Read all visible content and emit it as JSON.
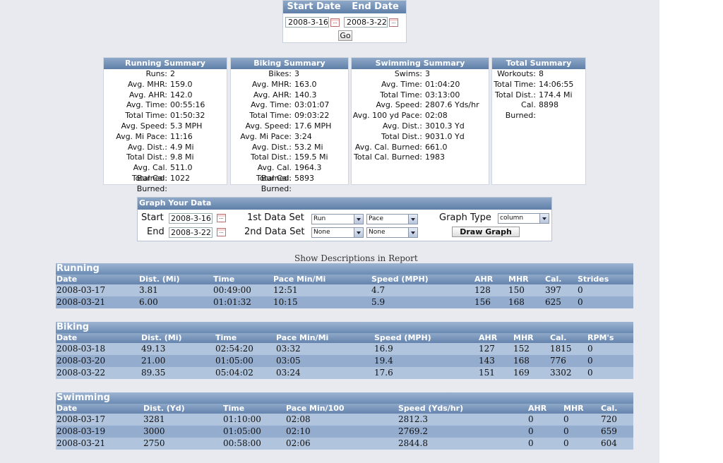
{
  "date_bar": {
    "start_label": "Start Date",
    "end_label": "End Date",
    "start_value": "2008-3-16",
    "end_value": "2008-3-22",
    "go_label": "Go"
  },
  "summaries": {
    "running": {
      "title": "Running Summary",
      "rows": [
        {
          "k": "Runs:",
          "v": "2"
        },
        {
          "k": "Avg. MHR:",
          "v": "159.0"
        },
        {
          "k": "Avg. AHR:",
          "v": "142.0"
        },
        {
          "k": "Avg. Time:",
          "v": "00:55:16"
        },
        {
          "k": "Total Time:",
          "v": "01:50:32"
        },
        {
          "k": "Avg. Speed:",
          "v": "5.3 MPH"
        },
        {
          "k": "Avg. Mi Pace:",
          "v": "11:16"
        },
        {
          "k": "Avg. Dist.:",
          "v": "4.9 Mi"
        },
        {
          "k": "Total Dist.:",
          "v": "9.8 Mi"
        },
        {
          "k": "Avg. Cal. Burned:",
          "v": "511.0"
        },
        {
          "k": "Total Cal. Burned:",
          "v": "1022"
        }
      ]
    },
    "biking": {
      "title": "Biking Summary",
      "rows": [
        {
          "k": "Bikes:",
          "v": "3"
        },
        {
          "k": "Avg. MHR:",
          "v": "163.0"
        },
        {
          "k": "Avg. AHR:",
          "v": "140.3"
        },
        {
          "k": "Avg. Time:",
          "v": "03:01:07"
        },
        {
          "k": "Total Time:",
          "v": "09:03:22"
        },
        {
          "k": "Avg. Speed:",
          "v": "17.6 MPH"
        },
        {
          "k": "Avg. Mi Pace:",
          "v": "3:24"
        },
        {
          "k": "Avg. Dist.:",
          "v": "53.2 Mi"
        },
        {
          "k": "Total Dist.:",
          "v": "159.5 Mi"
        },
        {
          "k": "Avg. Cal. Burned:",
          "v": "1964.3"
        },
        {
          "k": "Total Cal. Burned:",
          "v": "5893"
        }
      ]
    },
    "swimming": {
      "title": "Swimming Summary",
      "rows": [
        {
          "k": "Swims:",
          "v": "3"
        },
        {
          "k": "Avg. Time:",
          "v": "01:04:20"
        },
        {
          "k": "Total Time:",
          "v": "03:13:00"
        },
        {
          "k": "Avg. Speed:",
          "v": "2807.6 Yds/hr"
        },
        {
          "k": "Avg. 100 yd Pace:",
          "v": "02:08"
        },
        {
          "k": "Avg. Dist.:",
          "v": "3010.3 Yd"
        },
        {
          "k": "Total Dist.:",
          "v": "9031.0 Yd"
        },
        {
          "k": "Avg. Cal. Burned:",
          "v": "661.0"
        },
        {
          "k": "Total Cal. Burned:",
          "v": "1983"
        }
      ]
    },
    "total": {
      "title": "Total Summary",
      "rows": [
        {
          "k": "Workouts:",
          "v": "8"
        },
        {
          "k": "Total Time:",
          "v": "14:06:55"
        },
        {
          "k": "Total Dist.:",
          "v": "174.4 Mi"
        },
        {
          "k": "Cal. Burned:",
          "v": "8898"
        }
      ]
    }
  },
  "graph": {
    "title": "Graph Your Data",
    "start_label": "Start",
    "end_label": "End",
    "start_value": "2008-3-16",
    "end_value": "2008-3-22",
    "set1_label": "1st Data Set",
    "set2_label": "2nd Data Set",
    "set1_sport": "Run",
    "set1_metric": "Pace",
    "set2_sport": "None",
    "set2_metric": "None",
    "type_label": "Graph Type",
    "type_value": "column",
    "draw_label": "Draw Graph"
  },
  "show_descriptions": "Show Descriptions in Report",
  "tables": {
    "running": {
      "caption": "Running",
      "headers": [
        "Date",
        "Dist. (Mi)",
        "Time",
        "Pace Min/Mi",
        "Speed (MPH)",
        "AHR",
        "MHR",
        "Cal.",
        "Strides"
      ],
      "rows": [
        [
          "2008-03-17",
          "3.81",
          "00:49:00",
          "12:51",
          "4.7",
          "128",
          "150",
          "397",
          "0"
        ],
        [
          "2008-03-21",
          "6.00",
          "01:01:32",
          "10:15",
          "5.9",
          "156",
          "168",
          "625",
          "0"
        ]
      ]
    },
    "biking": {
      "caption": "Biking",
      "headers": [
        "Date",
        "Dist. (Mi)",
        "Time",
        "Pace Min/Mi",
        "Speed (MPH)",
        "AHR",
        "MHR",
        "Cal.",
        "RPM's"
      ],
      "rows": [
        [
          "2008-03-18",
          "49.13",
          "02:54:20",
          "03:32",
          "16.9",
          "127",
          "152",
          "1815",
          "0"
        ],
        [
          "2008-03-20",
          "21.00",
          "01:05:00",
          "03:05",
          "19.4",
          "143",
          "168",
          "776",
          "0"
        ],
        [
          "2008-03-22",
          "89.35",
          "05:04:02",
          "03:24",
          "17.6",
          "151",
          "169",
          "3302",
          "0"
        ]
      ]
    },
    "swimming": {
      "caption": "Swimming",
      "headers": [
        "Date",
        "Dist. (Yd)",
        "Time",
        "Pace Min/100",
        "Speed (Yds/hr)",
        "AHR",
        "MHR",
        "Cal."
      ],
      "rows": [
        [
          "2008-03-17",
          "3281",
          "01:10:00",
          "02:08",
          "2812.3",
          "0",
          "0",
          "720"
        ],
        [
          "2008-03-19",
          "3000",
          "01:05:00",
          "02:10",
          "2769.2",
          "0",
          "0",
          "659"
        ],
        [
          "2008-03-21",
          "2750",
          "00:58:00",
          "02:06",
          "2844.8",
          "0",
          "0",
          "604"
        ]
      ]
    }
  }
}
